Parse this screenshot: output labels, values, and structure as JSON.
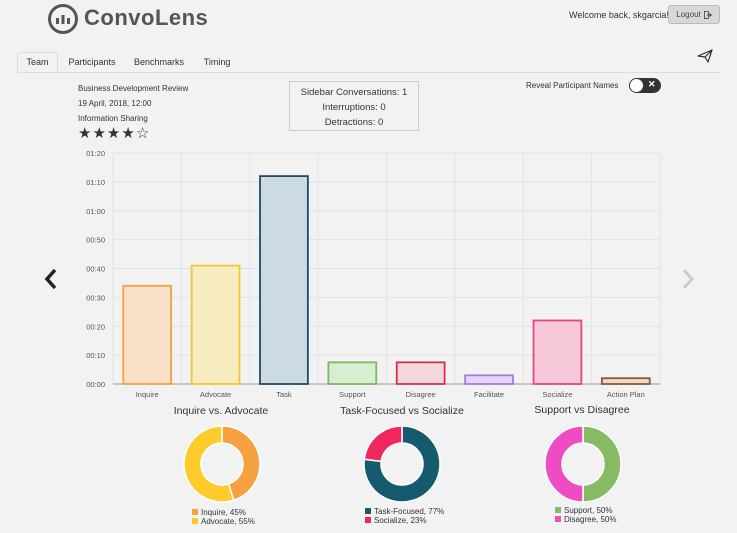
{
  "app": {
    "name": "ConvoLens"
  },
  "header": {
    "welcome": "Welcome back, skgarcia!",
    "logout_label": "Logout"
  },
  "tabs": [
    {
      "label": "Team",
      "active": true
    },
    {
      "label": "Participants",
      "active": false
    },
    {
      "label": "Benchmarks",
      "active": false
    },
    {
      "label": "Timing",
      "active": false
    }
  ],
  "meeting": {
    "title": "Business Development Review",
    "datetime": "19 April, 2018, 12:00",
    "rating_label": "Information Sharing",
    "rating": 4,
    "rating_max": 5
  },
  "stats": {
    "sidebar": "Sidebar Conversations: 1",
    "interruptions": "Interruptions: 0",
    "detractions": "Detractions: 0"
  },
  "reveal": {
    "label": "Reveal Participant Names",
    "on": false
  },
  "icons": [
    "logo-icon",
    "logout-icon",
    "send-icon",
    "star-icon",
    "chevron-left-icon",
    "chevron-right-icon"
  ],
  "chart_data": [
    {
      "type": "bar",
      "categories": [
        "Inquire",
        "Advocate",
        "Task",
        "Support",
        "Disagree",
        "Facilitate",
        "Socialize",
        "Action Plan"
      ],
      "values": [
        34,
        41,
        72,
        7.5,
        7.5,
        3,
        22,
        2
      ],
      "value_unit": "seconds",
      "yticks": [
        "00:00",
        "00:10",
        "00:20",
        "00:30",
        "00:40",
        "00:50",
        "01:00",
        "01:10",
        "01:20"
      ],
      "ylim": [
        0,
        80
      ],
      "grid": true,
      "fill_colors": [
        "#f8dfc6",
        "#f7ecc0",
        "#ccdbe2",
        "#d9edd2",
        "#f4d7dd",
        "#e7d7f5",
        "#f6c8d9",
        "#ecd9c9"
      ],
      "stroke_colors": [
        "#f5a142",
        "#f3c733",
        "#1e4b63",
        "#7bbb5e",
        "#d6304d",
        "#a877e8",
        "#e4487c",
        "#8a5a35"
      ]
    },
    {
      "type": "pie",
      "title": "Inquire vs. Advocate",
      "labels": [
        "Inquire, 45%",
        "Advocate, 55%"
      ],
      "values": [
        45,
        55
      ],
      "colors": [
        "#f5a142",
        "#fdcb2c"
      ]
    },
    {
      "type": "pie",
      "title": "Task-Focused vs Socialize",
      "labels": [
        "Task-Focused, 77%",
        "Socialize, 23%"
      ],
      "values": [
        77,
        23
      ],
      "colors": [
        "#155a6e",
        "#f0285e"
      ]
    },
    {
      "type": "pie",
      "title": "Support vs Disagree",
      "labels": [
        "Support, 50%",
        "Disagree, 50%"
      ],
      "values": [
        50,
        50
      ],
      "colors": [
        "#86bb63",
        "#ee4cc3"
      ]
    }
  ]
}
